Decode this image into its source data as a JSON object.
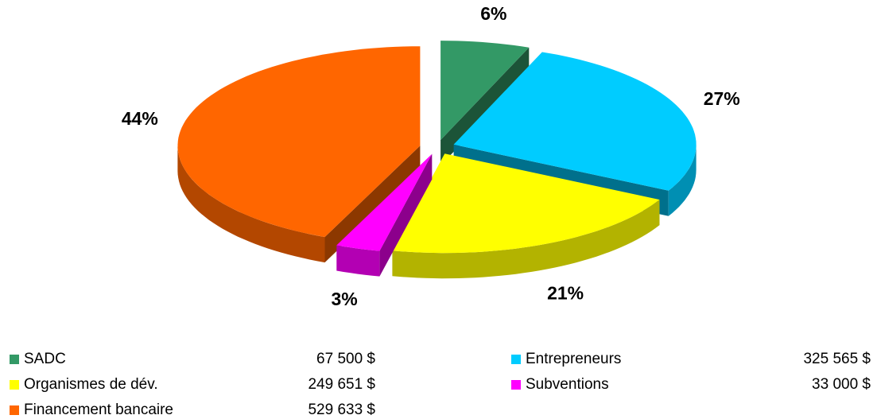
{
  "chart_data": {
    "type": "pie",
    "categories": [
      "SADC",
      "Entrepreneurs",
      "Organismes de dév.",
      "Subventions",
      "Financement bancaire"
    ],
    "values": [
      6,
      27,
      21,
      3,
      44
    ],
    "value_labels": [
      "6%",
      "27%",
      "21%",
      "3%",
      "44%"
    ],
    "amounts": [
      "67 500 $",
      "325 565 $",
      "249 651 $",
      "33 000 $",
      "529 633 $"
    ],
    "colors": [
      "#339966",
      "#00ccff",
      "#ffff00",
      "#ff00ff",
      "#ff6600"
    ],
    "legend": "bottom"
  }
}
